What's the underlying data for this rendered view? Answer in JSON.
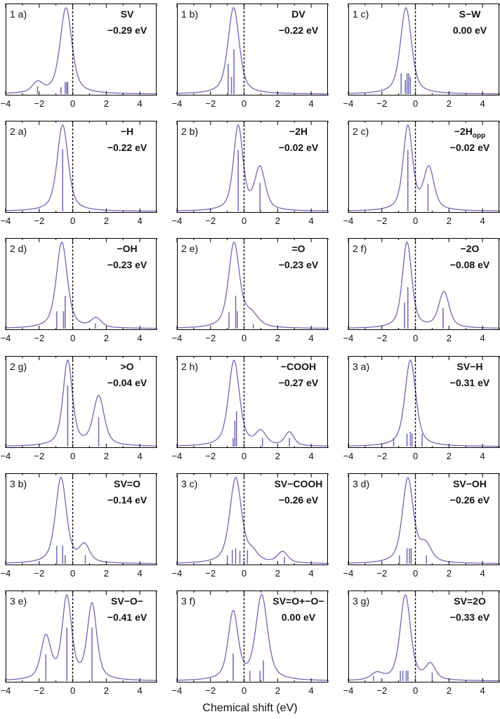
{
  "chart_data": {
    "type": "line",
    "xlabel": "Chemical shift (eV)",
    "xlim": [
      -4,
      5
    ],
    "xticks": [
      -4,
      -2,
      0,
      2,
      4
    ],
    "panels": [
      {
        "label": "1 a)",
        "title": "SV",
        "energy": "−0.29 eV",
        "peaks": [
          [
            -0.4,
            1.0,
            0.45
          ],
          [
            -2.1,
            0.12,
            0.4
          ]
        ],
        "sticks": [
          [
            -2.1,
            0.09
          ],
          [
            -0.7,
            0.08
          ],
          [
            -0.45,
            0.14
          ],
          [
            -0.35,
            0.14
          ],
          [
            -0.3,
            0.14
          ]
        ]
      },
      {
        "label": "1 b)",
        "title": "DV",
        "energy": "−0.22 eV",
        "peaks": [
          [
            -0.6,
            1.0,
            0.42
          ],
          [
            -0.8,
            0.15,
            0.4
          ]
        ],
        "sticks": [
          [
            -0.95,
            0.35
          ],
          [
            -0.75,
            0.2
          ],
          [
            -0.6,
            0.52
          ]
        ]
      },
      {
        "label": "1 c)",
        "title": "S−W",
        "energy": "0.00 eV",
        "peaks": [
          [
            -0.55,
            1.0,
            0.42
          ],
          [
            -0.7,
            0.1,
            0.4
          ]
        ],
        "sticks": [
          [
            -0.85,
            0.24
          ],
          [
            -0.6,
            0.16
          ],
          [
            -0.5,
            0.24
          ],
          [
            -0.4,
            0.24
          ],
          [
            -0.3,
            0.2
          ]
        ]
      },
      {
        "label": "2 a)",
        "title": "−H",
        "energy": "−0.22 eV",
        "peaks": [
          [
            -0.6,
            1.0,
            0.42
          ]
        ],
        "sticks": [
          [
            -0.6,
            0.72
          ]
        ]
      },
      {
        "label": "2 b)",
        "title": "−2H",
        "energy": "−0.02 eV",
        "peaks": [
          [
            -0.35,
            1.0,
            0.36
          ],
          [
            0.95,
            0.5,
            0.4
          ]
        ],
        "sticks": [
          [
            -0.35,
            0.71
          ],
          [
            0.95,
            0.33
          ]
        ]
      },
      {
        "label": "2 c)",
        "title": "−2H",
        "title_sub": "opp",
        "energy": "−0.02 eV",
        "peaks": [
          [
            -0.45,
            1.0,
            0.36
          ],
          [
            0.8,
            0.5,
            0.4
          ]
        ],
        "sticks": [
          [
            -0.45,
            0.71
          ],
          [
            0.75,
            0.32
          ]
        ]
      },
      {
        "label": "2 d)",
        "title": "−OH",
        "energy": "−0.23 eV",
        "peaks": [
          [
            -0.65,
            1.0,
            0.42
          ],
          [
            1.4,
            0.11,
            0.4
          ]
        ],
        "sticks": [
          [
            -0.95,
            0.2
          ],
          [
            -0.55,
            0.2
          ],
          [
            -0.45,
            0.38
          ],
          [
            1.35,
            0.06
          ]
        ]
      },
      {
        "label": "2 e)",
        "title": "=O",
        "energy": "−0.23 eV",
        "peaks": [
          [
            -0.6,
            1.0,
            0.42
          ],
          [
            0.4,
            0.15,
            0.55
          ]
        ],
        "sticks": [
          [
            -0.9,
            0.19
          ],
          [
            -0.5,
            0.38
          ],
          [
            -0.4,
            0.2
          ],
          [
            0.55,
            0.05
          ]
        ]
      },
      {
        "label": "2 f)",
        "title": "−2O",
        "energy": "−0.08 eV",
        "peaks": [
          [
            -0.5,
            1.0,
            0.36
          ],
          [
            1.7,
            0.42,
            0.4
          ]
        ],
        "sticks": [
          [
            -0.65,
            0.3
          ],
          [
            -0.45,
            0.48
          ],
          [
            1.65,
            0.24
          ]
        ]
      },
      {
        "label": "2 g)",
        "title": ">O",
        "energy": "−0.04 eV",
        "peaks": [
          [
            -0.3,
            1.0,
            0.36
          ],
          [
            1.55,
            0.58,
            0.42
          ]
        ],
        "sticks": [
          [
            -0.3,
            0.71
          ],
          [
            1.55,
            0.34
          ]
        ]
      },
      {
        "label": "2 h)",
        "title": "−COOH",
        "energy": "−0.27 eV",
        "peaks": [
          [
            -0.6,
            1.0,
            0.42
          ],
          [
            1.0,
            0.16,
            0.4
          ],
          [
            2.7,
            0.16,
            0.35
          ]
        ],
        "sticks": [
          [
            -0.65,
            0.1
          ],
          [
            -0.55,
            0.3
          ],
          [
            -0.45,
            0.41
          ],
          [
            1.1,
            0.1
          ],
          [
            2.7,
            0.1
          ]
        ]
      },
      {
        "label": "3 a)",
        "title": "SV−H",
        "energy": "−0.31 eV",
        "peaks": [
          [
            -0.3,
            1.0,
            0.42
          ]
        ],
        "sticks": [
          [
            -1.3,
            0.1
          ],
          [
            -0.5,
            0.15
          ],
          [
            -0.3,
            0.17
          ],
          [
            -0.2,
            0.15
          ],
          [
            0.4,
            0.15
          ]
        ]
      },
      {
        "label": "3 b)",
        "title": "SV=O",
        "energy": "−0.14 eV",
        "peaks": [
          [
            -0.7,
            1.0,
            0.42
          ],
          [
            0.7,
            0.2,
            0.4
          ]
        ],
        "sticks": [
          [
            -0.95,
            0.21
          ],
          [
            -0.6,
            0.21
          ],
          [
            -0.45,
            0.1
          ],
          [
            0.75,
            0.1
          ]
        ]
      },
      {
        "label": "3 c)",
        "title": "SV−COOH",
        "energy": "−0.26 eV",
        "peaks": [
          [
            -0.5,
            1.0,
            0.45
          ],
          [
            2.3,
            0.13,
            0.4
          ],
          [
            0.5,
            0.1,
            0.4
          ]
        ],
        "sticks": [
          [
            -1.0,
            0.1
          ],
          [
            -0.7,
            0.16
          ],
          [
            -0.5,
            0.18
          ],
          [
            -0.25,
            0.15
          ],
          [
            0.2,
            0.16
          ],
          [
            2.4,
            0.08
          ]
        ]
      },
      {
        "label": "3 d)",
        "title": "SV−OH",
        "energy": "−0.26 eV",
        "peaks": [
          [
            -0.45,
            1.0,
            0.42
          ],
          [
            0.6,
            0.2,
            0.45
          ]
        ],
        "sticks": [
          [
            -0.95,
            0.1
          ],
          [
            -0.5,
            0.18
          ],
          [
            -0.35,
            0.18
          ],
          [
            -0.25,
            0.18
          ],
          [
            0.65,
            0.1
          ]
        ]
      },
      {
        "label": "3 e)",
        "title": "SV−O−",
        "energy": "−0.41 eV",
        "peaks": [
          [
            -1.6,
            0.52,
            0.38
          ],
          [
            -0.35,
            1.0,
            0.36
          ],
          [
            1.15,
            0.92,
            0.36
          ]
        ],
        "sticks": [
          [
            -1.6,
            0.31
          ],
          [
            -0.35,
            0.62
          ],
          [
            1.15,
            0.62
          ]
        ]
      },
      {
        "label": "3 f)",
        "title": "SV=O+−O−",
        "energy": "0.00 eV",
        "peaks": [
          [
            -0.65,
            0.48,
            0.38
          ],
          [
            1.05,
            0.6,
            0.45
          ]
        ],
        "sticks": [
          [
            -0.65,
            0.32
          ],
          [
            0.35,
            0.12
          ],
          [
            0.95,
            0.12
          ],
          [
            1.15,
            0.24
          ]
        ]
      },
      {
        "label": "3 g)",
        "title": "SV=2O",
        "energy": "−0.33 eV",
        "peaks": [
          [
            -0.6,
            1.0,
            0.4
          ],
          [
            -2.3,
            0.08,
            0.45
          ],
          [
            0.9,
            0.18,
            0.38
          ]
        ],
        "sticks": [
          [
            -2.5,
            0.06
          ],
          [
            -0.9,
            0.12
          ],
          [
            -0.75,
            0.12
          ],
          [
            -0.55,
            0.12
          ],
          [
            -0.45,
            0.12
          ],
          [
            1.0,
            0.1
          ]
        ]
      }
    ]
  }
}
